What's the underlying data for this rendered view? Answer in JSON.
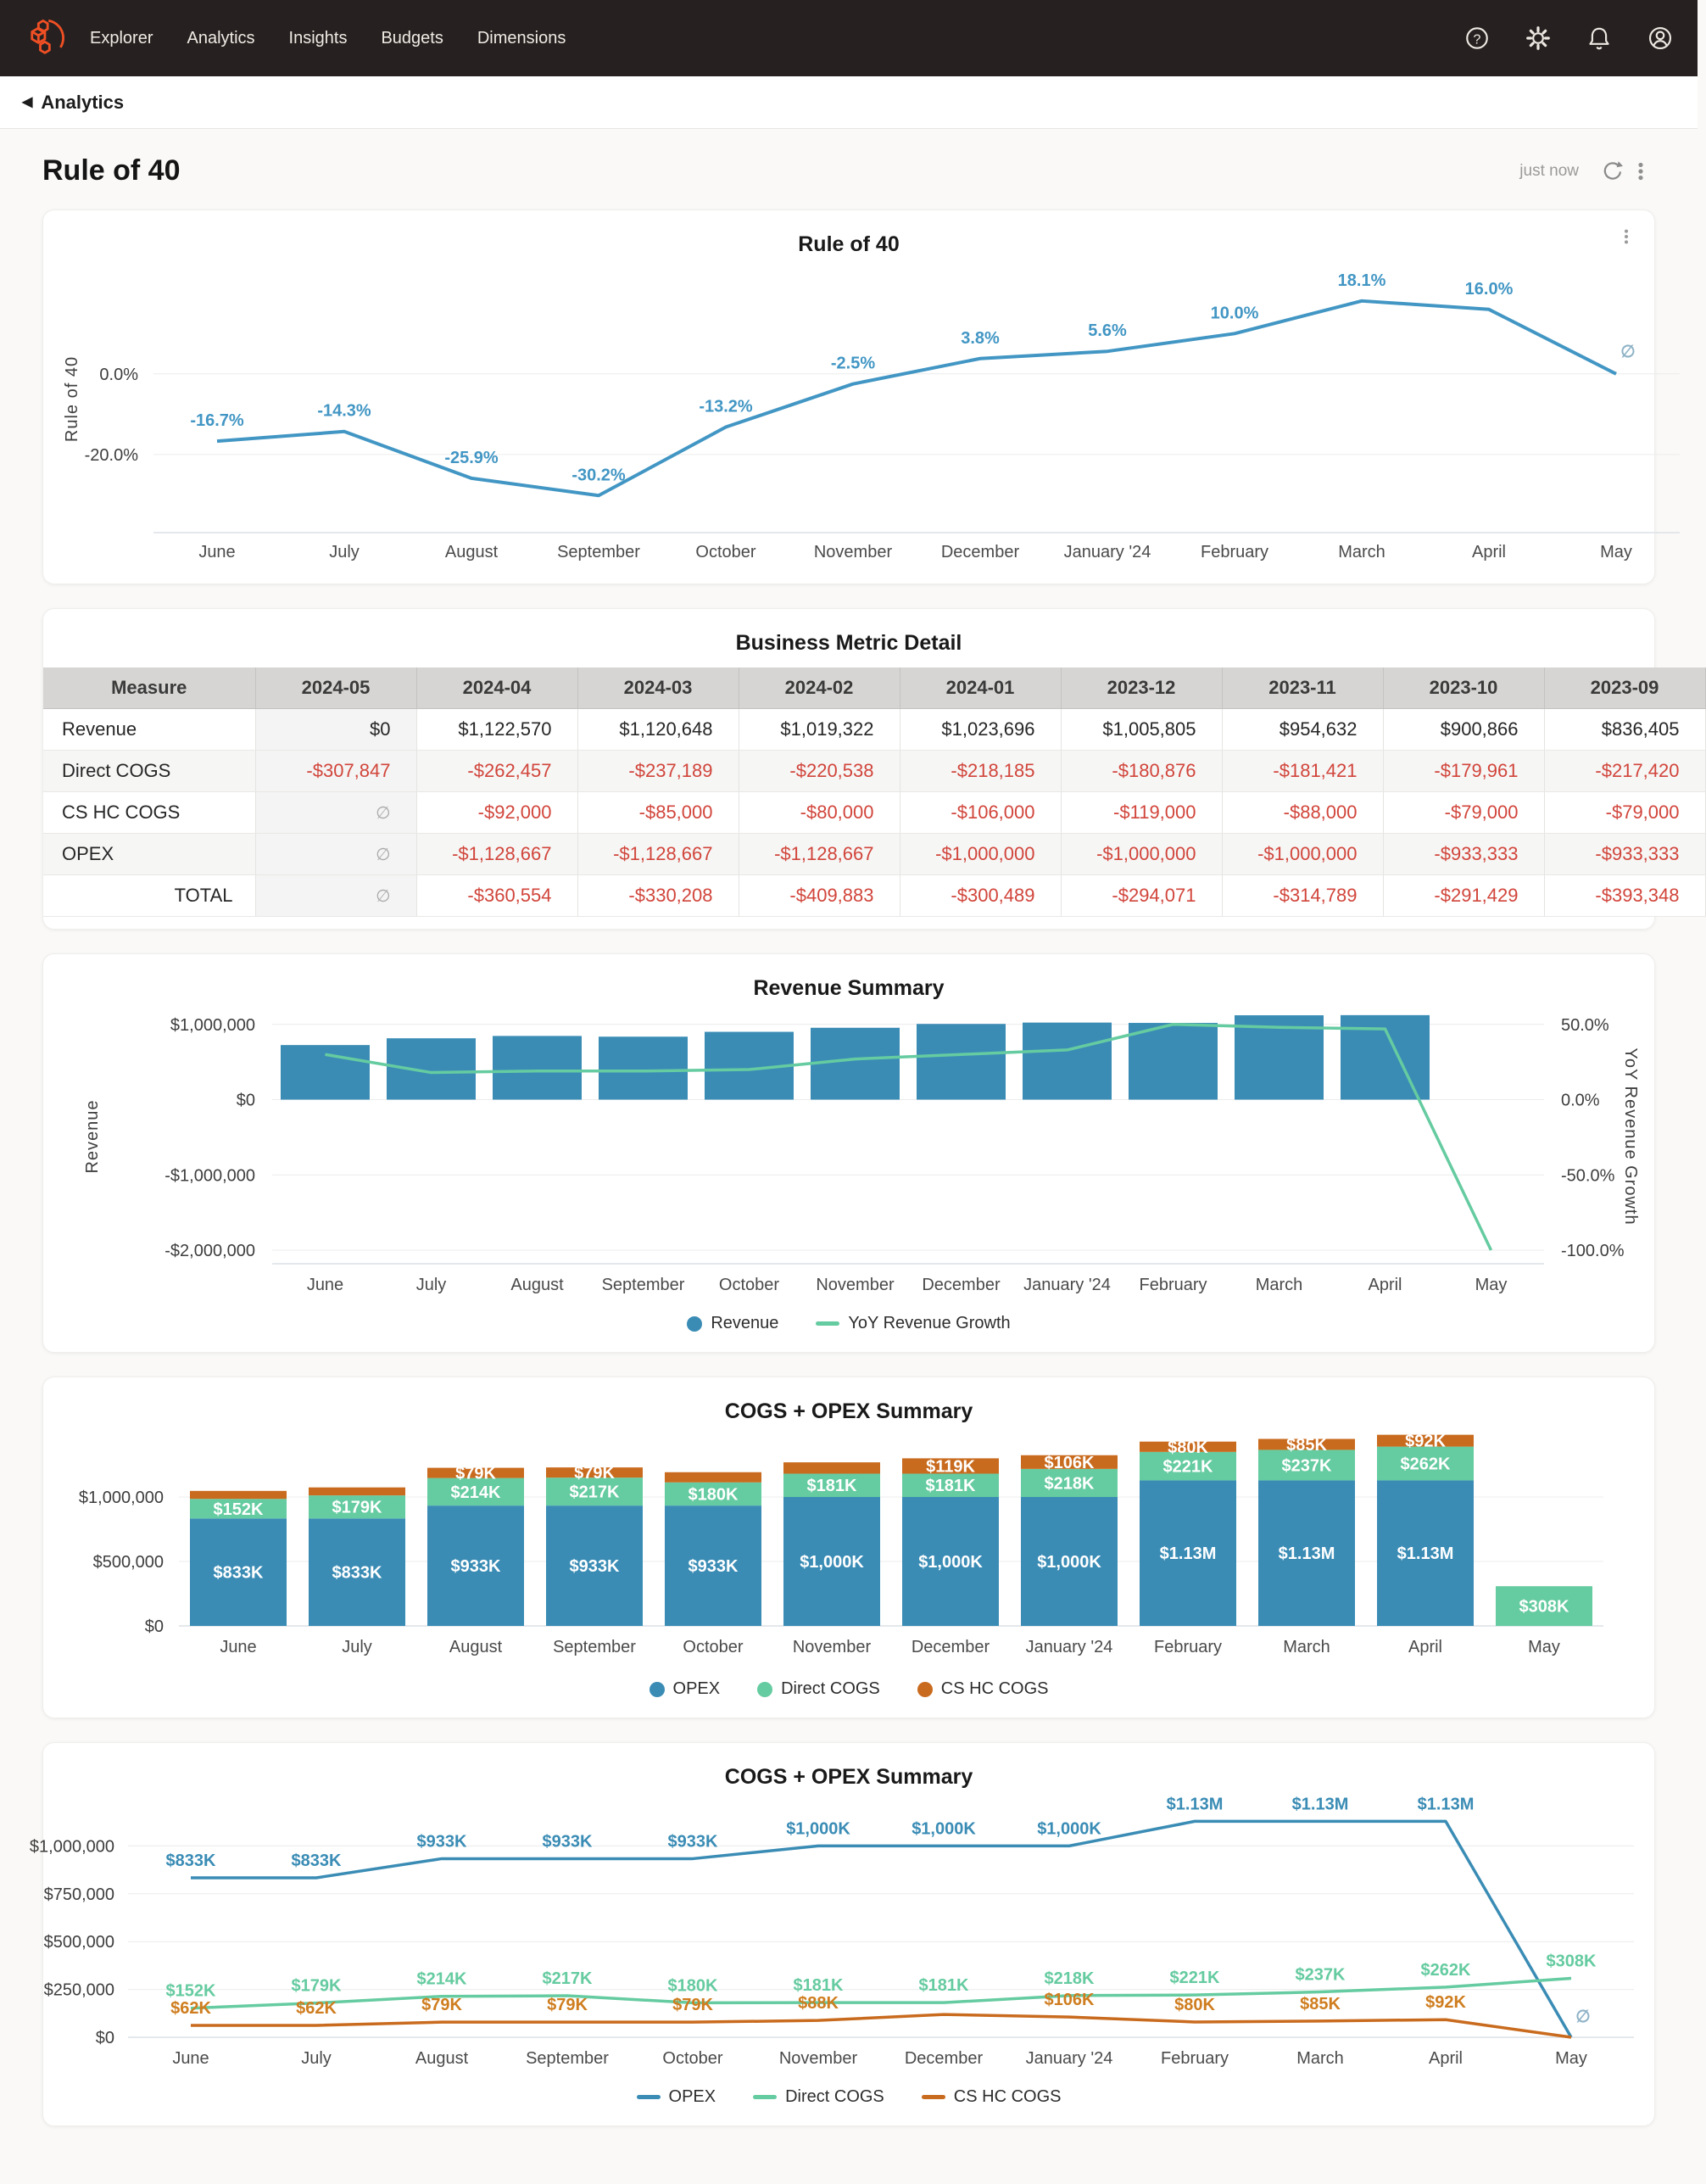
{
  "colors": {
    "blue": "#3a8cb5",
    "green": "#65cba0",
    "orange": "#c96b1e",
    "orange_label": "#cf7d1f",
    "rule40_blue": "#4296c4",
    "null_label": "#8fb3c7",
    "red": "#d1453b",
    "logo_orange": "#f04f24"
  },
  "nav": {
    "items": [
      "Explorer",
      "Analytics",
      "Insights",
      "Budgets",
      "Dimensions"
    ],
    "icons": [
      "help-icon",
      "settings-icon",
      "notifications-icon",
      "account-icon"
    ]
  },
  "breadcrumb": {
    "label": "Analytics"
  },
  "header": {
    "title": "Rule of 40",
    "updated": "just now"
  },
  "chart_data": [
    {
      "type": "line",
      "title": "Rule of 40",
      "ylabel": "Rule of 40",
      "categories": [
        "June",
        "July",
        "August",
        "September",
        "October",
        "November",
        "December",
        "January '24",
        "February",
        "March",
        "April",
        "May"
      ],
      "series": [
        {
          "name": "Rule of 40",
          "color": "rule40_blue",
          "values": [
            -16.7,
            -14.3,
            -25.9,
            -30.2,
            -13.2,
            -2.5,
            3.8,
            5.6,
            10,
            18.1,
            16,
            null
          ]
        }
      ],
      "point_labels": [
        "-16.7%",
        "-14.3%",
        "-25.9%",
        "-30.2%",
        "-13.2%",
        "-2.5%",
        "3.8%",
        "5.6%",
        "10.0%",
        "18.1%",
        "16.0%",
        "∅"
      ],
      "yticks": [
        {
          "v": 0,
          "label": "0.0%"
        },
        {
          "v": -20,
          "label": "-20.0%"
        }
      ],
      "ylim": [
        -39.4,
        26.9
      ],
      "grid": true,
      "legend": []
    },
    {
      "type": "table",
      "title": "Business Metric Detail",
      "columns": [
        "Measure",
        "2024-05",
        "2024-04",
        "2024-03",
        "2024-02",
        "2024-01",
        "2023-12",
        "2023-11",
        "2023-10",
        "2023-09"
      ],
      "rows": [
        {
          "measure": "Revenue",
          "values": [
            "$0",
            "$1,122,570",
            "$1,120,648",
            "$1,019,322",
            "$1,023,696",
            "$1,005,805",
            "$954,632",
            "$900,866",
            "$836,405"
          ]
        },
        {
          "measure": "Direct COGS",
          "values": [
            "-$307,847",
            "-$262,457",
            "-$237,189",
            "-$220,538",
            "-$218,185",
            "-$180,876",
            "-$181,421",
            "-$179,961",
            "-$217,420"
          ]
        },
        {
          "measure": "CS HC COGS",
          "values": [
            "∅",
            "-$92,000",
            "-$85,000",
            "-$80,000",
            "-$106,000",
            "-$119,000",
            "-$88,000",
            "-$79,000",
            "-$79,000"
          ]
        },
        {
          "measure": "OPEX",
          "values": [
            "∅",
            "-$1,128,667",
            "-$1,128,667",
            "-$1,128,667",
            "-$1,000,000",
            "-$1,000,000",
            "-$1,000,000",
            "-$933,333",
            "-$933,333"
          ]
        },
        {
          "measure": "TOTAL",
          "values": [
            "∅",
            "-$360,554",
            "-$330,208",
            "-$409,883",
            "-$300,489",
            "-$294,071",
            "-$314,789",
            "-$291,429",
            "-$393,348"
          ]
        }
      ]
    },
    {
      "type": "bar+line",
      "title": "Revenue Summary",
      "categories": [
        "June",
        "July",
        "August",
        "September",
        "October",
        "November",
        "December",
        "January '24",
        "February",
        "March",
        "April",
        "May"
      ],
      "left_axis": {
        "label": "Revenue",
        "lim": [
          -2180000,
          1200000
        ],
        "ticks": [
          {
            "v": 1000000,
            "label": "$1,000,000"
          },
          {
            "v": 0,
            "label": "$0"
          },
          {
            "v": -1000000,
            "label": "-$1,000,000"
          },
          {
            "v": -2000000,
            "label": "-$2,000,000"
          }
        ]
      },
      "right_axis": {
        "label": "YoY Revenue Growth",
        "pct_per_dollar": 50,
        "ticks": [
          {
            "v": 50,
            "label": "50.0%"
          },
          {
            "v": 0,
            "label": "0.0%"
          },
          {
            "v": -50,
            "label": "-50.0%"
          },
          {
            "v": -100,
            "label": "-100.0%"
          }
        ]
      },
      "series": [
        {
          "name": "Revenue",
          "kind": "bar",
          "color": "blue",
          "values": [
            725000,
            815000,
            846000,
            836405,
            900866,
            954632,
            1005805,
            1023696,
            1019322,
            1120648,
            1122570,
            0
          ]
        },
        {
          "name": "YoY Revenue Growth",
          "kind": "line",
          "color": "green",
          "axis": "right",
          "values": [
            30,
            18,
            19,
            19,
            20,
            27,
            30,
            33,
            50,
            48,
            47,
            -100
          ]
        }
      ],
      "legend": [
        {
          "swatch": "dot",
          "color": "blue",
          "label": "Revenue"
        },
        {
          "swatch": "line",
          "color": "green",
          "label": "YoY Revenue Growth"
        }
      ]
    },
    {
      "type": "stacked-bar",
      "title": "COGS + OPEX Summary",
      "categories": [
        "June",
        "July",
        "August",
        "September",
        "October",
        "November",
        "December",
        "January '24",
        "February",
        "March",
        "April",
        "May"
      ],
      "yticks": [
        {
          "v": 1000000,
          "label": "$1,000,000"
        },
        {
          "v": 500000,
          "label": "$500,000"
        },
        {
          "v": 0,
          "label": "$0"
        }
      ],
      "ylim": [
        0,
        1500000
      ],
      "series": [
        {
          "name": "OPEX",
          "color": "blue",
          "values": [
            833333,
            833333,
            933333,
            933333,
            933333,
            1000000,
            1000000,
            1000000,
            1128667,
            1128667,
            1128667,
            0
          ],
          "labels": [
            "$833K",
            "$833K",
            "$933K",
            "$933K",
            "$933K",
            "$1,000K",
            "$1,000K",
            "$1,000K",
            "$1.13M",
            "$1.13M",
            "$1.13M",
            ""
          ]
        },
        {
          "name": "Direct COGS",
          "color": "green",
          "values": [
            152000,
            179000,
            214000,
            217000,
            180000,
            181000,
            181000,
            218000,
            221000,
            237000,
            262000,
            308000
          ],
          "labels": [
            "$152K",
            "$179K",
            "$214K",
            "$217K",
            "$180K",
            "$181K",
            "$181K",
            "$218K",
            "$221K",
            "$237K",
            "$262K",
            "$308K"
          ]
        },
        {
          "name": "CS HC COGS",
          "color": "orange",
          "values": [
            62000,
            62000,
            79000,
            79000,
            79000,
            88000,
            119000,
            106000,
            80000,
            85000,
            92000,
            0
          ],
          "labels": [
            "",
            "",
            "$79K",
            "$79K",
            "",
            "",
            "$119K",
            "$106K",
            "$80K",
            "$85K",
            "$92K",
            ""
          ]
        }
      ],
      "legend": [
        {
          "swatch": "dot",
          "color": "blue",
          "label": "OPEX"
        },
        {
          "swatch": "dot",
          "color": "green",
          "label": "Direct COGS"
        },
        {
          "swatch": "dot",
          "color": "orange",
          "label": "CS HC COGS"
        }
      ]
    },
    {
      "type": "line",
      "title": "COGS + OPEX Summary",
      "categories": [
        "June",
        "July",
        "August",
        "September",
        "October",
        "November",
        "December",
        "January '24",
        "February",
        "March",
        "April",
        "May"
      ],
      "yticks": [
        {
          "v": 1000000,
          "label": "$1,000,000"
        },
        {
          "v": 750000,
          "label": "$750,000"
        },
        {
          "v": 500000,
          "label": "$500,000"
        },
        {
          "v": 250000,
          "label": "$250,000"
        },
        {
          "v": 0,
          "label": "$0"
        }
      ],
      "ylim": [
        0,
        1250000
      ],
      "series": [
        {
          "name": "OPEX",
          "color": "blue",
          "values": [
            833333,
            833333,
            933333,
            933333,
            933333,
            1000000,
            1000000,
            1000000,
            1128667,
            1128667,
            1128667,
            0
          ],
          "labels": [
            "$833K",
            "$833K",
            "$933K",
            "$933K",
            "$933K",
            "$1,000K",
            "$1,000K",
            "$1,000K",
            "$1.13M",
            "$1.13M",
            "$1.13M",
            "∅"
          ]
        },
        {
          "name": "Direct COGS",
          "color": "green",
          "values": [
            152000,
            179000,
            214000,
            217000,
            180000,
            181000,
            181000,
            218000,
            221000,
            237000,
            262000,
            308000
          ],
          "labels": [
            "$152K",
            "$179K",
            "$214K",
            "$217K",
            "$180K",
            "$181K",
            "$181K",
            "$218K",
            "$221K",
            "$237K",
            "$262K",
            "$308K"
          ]
        },
        {
          "name": "CS HC COGS",
          "color": "orange",
          "values": [
            62000,
            62000,
            79000,
            79000,
            79000,
            88000,
            119000,
            106000,
            80000,
            85000,
            92000,
            0
          ],
          "labels": [
            "$62K",
            "$62K",
            "$79K",
            "$79K",
            "$79K",
            "$88K",
            "",
            "$106K",
            "$80K",
            "$85K",
            "$92K",
            ""
          ]
        }
      ],
      "legend": [
        {
          "swatch": "line",
          "color": "blue",
          "label": "OPEX"
        },
        {
          "swatch": "line",
          "color": "green",
          "label": "Direct COGS"
        },
        {
          "swatch": "line",
          "color": "orange",
          "label": "CS HC COGS"
        }
      ]
    }
  ]
}
